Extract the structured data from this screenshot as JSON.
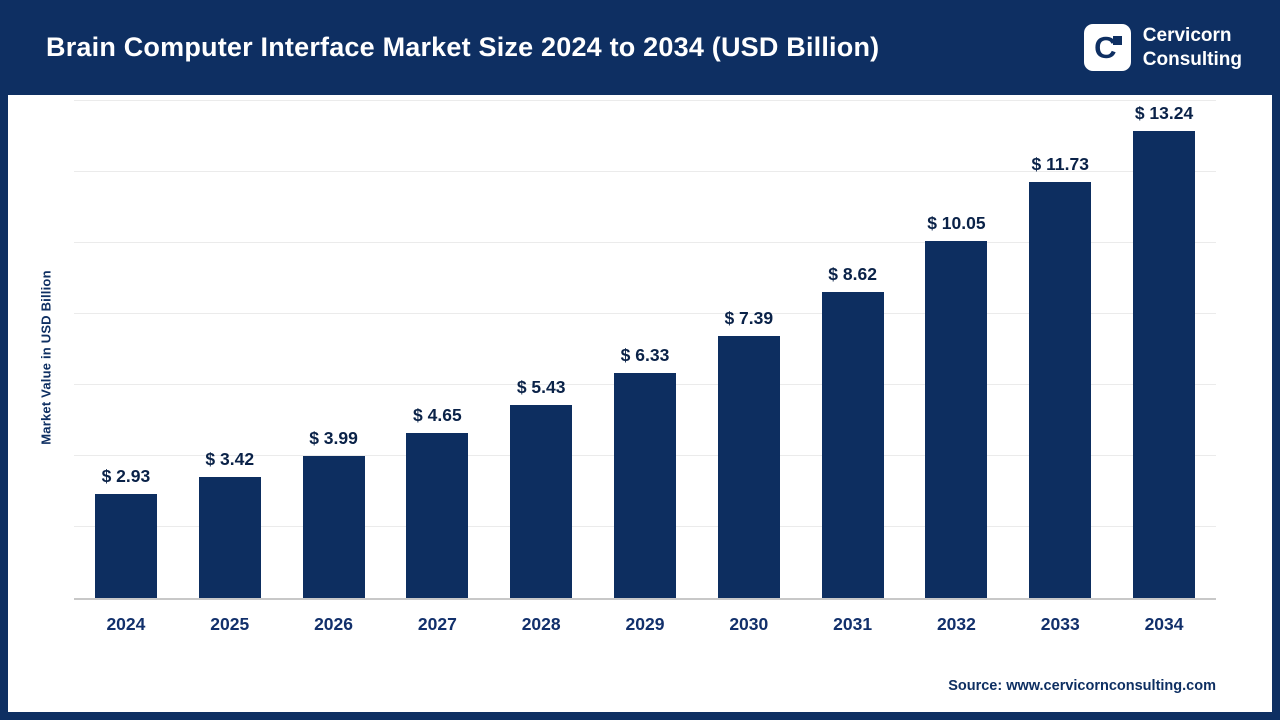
{
  "header": {
    "title": "Brain Computer Interface Market Size 2024 to 2034 (USD Billion)",
    "brand": {
      "logo_letter": "C",
      "name_line1": "Cervicorn",
      "name_line2": "Consulting"
    }
  },
  "chart_data": {
    "type": "bar",
    "title": "Brain Computer Interface Market Size 2024 to 2034 (USD Billion)",
    "categories": [
      "2024",
      "2025",
      "2026",
      "2027",
      "2028",
      "2029",
      "2030",
      "2031",
      "2032",
      "2033",
      "2034"
    ],
    "values": [
      2.93,
      3.42,
      3.99,
      4.65,
      5.43,
      6.33,
      7.39,
      8.62,
      10.05,
      11.73,
      13.24
    ],
    "value_prefix": "$ ",
    "xlabel": "",
    "ylabel": "Market Value in USD Billion",
    "ylim": [
      0,
      14
    ],
    "grid": true,
    "gridline_step": 2,
    "legend": "none",
    "bar_color": "#0d2e60"
  },
  "footer": {
    "source": "Source: www.cervicornconsulting.com"
  },
  "colors": {
    "navy": "#0e2f62",
    "bar": "#0d2e60",
    "value_label": "#0a2248"
  }
}
